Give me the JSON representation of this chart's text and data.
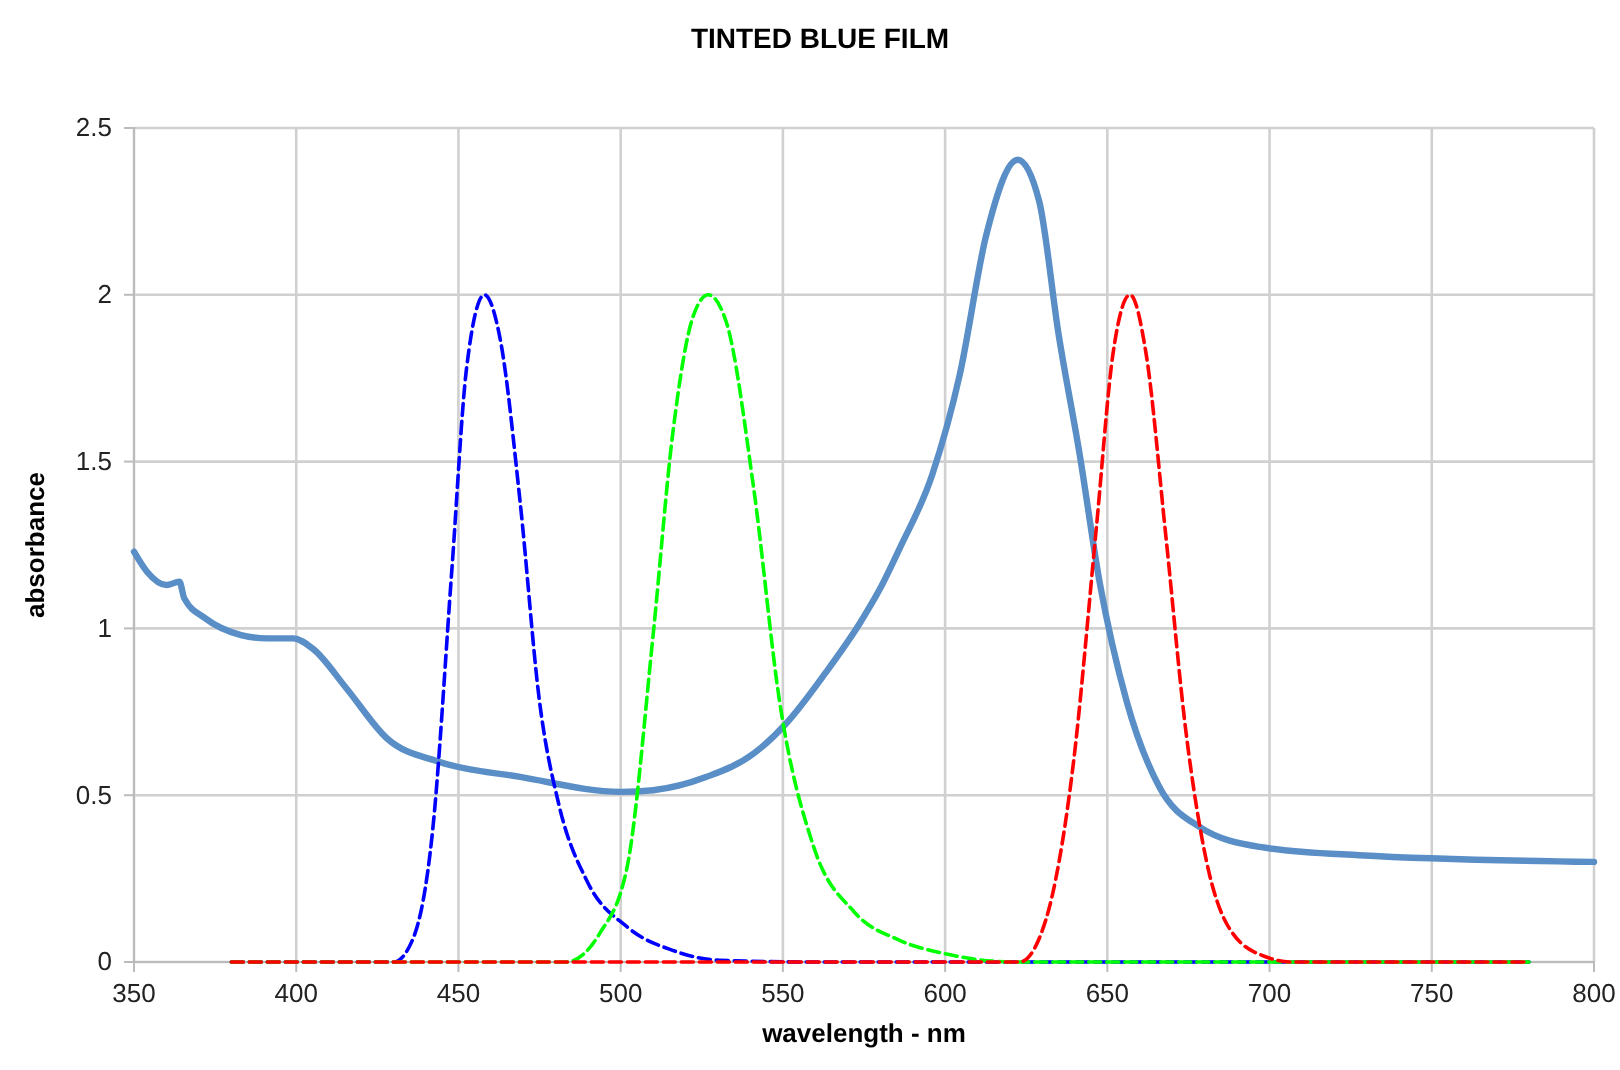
{
  "chart_data": {
    "type": "line",
    "title": "TINTED BLUE FILM",
    "xlabel": "wavelength - nm",
    "ylabel": "absorbance",
    "xlim": [
      350,
      800
    ],
    "xticks": [
      350,
      400,
      450,
      500,
      550,
      600,
      650,
      700,
      750,
      800
    ],
    "ylim": [
      0,
      2.5
    ],
    "yticks": [
      0,
      0.5,
      1,
      1.5,
      2,
      2.5
    ],
    "grid": true,
    "series": [
      {
        "color": "#5a8ec6",
        "line_style": "solid",
        "x": [
          350,
          354,
          360,
          364,
          365.5,
          372,
          383,
          391,
          399,
          405,
          415.5,
          428,
          444,
          469,
          500,
          510,
          526.5,
          541,
          551,
          563,
          574,
          580,
          586,
          596,
          604.5,
          612.7,
          622.4,
          629,
          635,
          641.5,
          647.6,
          656,
          666,
          678.4,
          697,
          727.7,
          800
        ],
        "values": [
          1.23,
          1.17,
          1.13,
          1.14,
          1.09,
          1.03,
          0.98,
          0.97,
          0.97,
          0.94,
          0.82,
          0.67,
          0.6,
          0.555,
          0.51,
          0.515,
          0.555,
          0.625,
          0.715,
          0.865,
          1.02,
          1.12,
          1.24,
          1.46,
          1.76,
          2.18,
          2.405,
          2.28,
          1.88,
          1.52,
          1.14,
          0.78,
          0.525,
          0.405,
          0.345,
          0.32,
          0.3
        ]
      },
      {
        "color": "#0000ff",
        "line_style": "dashed",
        "x": [
          380,
          430,
          436,
          442,
          448,
          452.5,
          458,
          463,
          469,
          475,
          481,
          489.5,
          502,
          516,
          530.6,
          560,
          780
        ],
        "values": [
          0,
          0,
          0.07,
          0.39,
          1.18,
          1.78,
          2.0,
          1.86,
          1.38,
          0.78,
          0.47,
          0.245,
          0.105,
          0.035,
          0.005,
          0,
          0
        ]
      },
      {
        "color": "#00ff00",
        "line_style": "dashed",
        "x": [
          380,
          483,
          493.5,
          502,
          510,
          516,
          522.5,
          527,
          532.5,
          541,
          549,
          559.5,
          572,
          586,
          600,
          621,
          780
        ],
        "values": [
          0,
          0,
          0.085,
          0.285,
          0.98,
          1.58,
          1.94,
          2.0,
          1.92,
          1.42,
          0.78,
          0.345,
          0.15,
          0.065,
          0.025,
          0,
          0
        ]
      },
      {
        "color": "#ff0000",
        "line_style": "dashed",
        "x": [
          380,
          623,
          631,
          639.4,
          646.6,
          651.7,
          657,
          662,
          668,
          674.3,
          680.5,
          688.7,
          699,
          707,
          780
        ],
        "values": [
          0,
          0,
          0.125,
          0.585,
          1.3,
          1.82,
          2.0,
          1.82,
          1.28,
          0.685,
          0.305,
          0.085,
          0.015,
          0,
          0
        ]
      }
    ]
  }
}
